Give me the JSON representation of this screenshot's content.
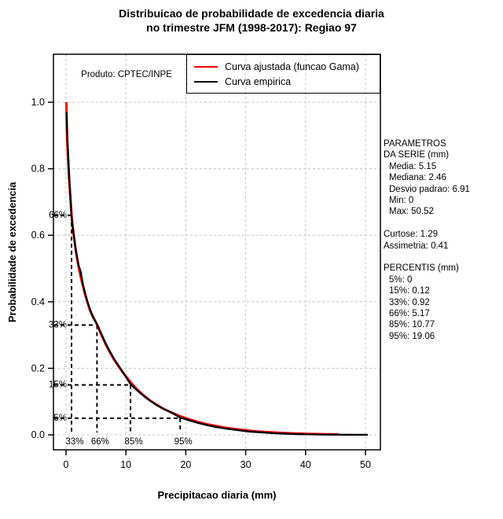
{
  "title": {
    "line1": "Distribuicao de probabilidade de excedencia diaria",
    "line2": "no trimestre JFM (1998-2017): Regiao 97"
  },
  "product_label": "Produto: CPTEC/INPE",
  "legend": {
    "items": [
      {
        "label": "Curva ajustada (funcao Gama)",
        "color": "#ff0000"
      },
      {
        "label": "Curva empirica",
        "color": "#000000"
      }
    ]
  },
  "axes": {
    "x_label": "Precipitacao diaria (mm)",
    "y_label": "Probabilidade de excedencia"
  },
  "side_panel": {
    "parametros_header": [
      "PARAMETROS",
      "DA SERIE (mm)"
    ],
    "parametros_items": [
      "Media: 5.15",
      "Mediana: 2.46",
      "Desvio padrao: 6.91",
      "Min: 0",
      "Max: 50.52"
    ],
    "moments": [
      "Curtose: 1.29",
      "Assimetria: 0.41"
    ],
    "percentis_header": "PERCENTIS (mm)",
    "percentis_items": [
      "5%: 0",
      "15%: 0.12",
      "33%: 0.92",
      "66%: 5.17",
      "85%: 10.77",
      "95%: 19.06"
    ]
  },
  "chart_data": {
    "type": "line",
    "title": "Distribuicao de probabilidade de excedencia diaria no trimestre JFM (1998-2017): Regiao 97",
    "xlabel": "Precipitacao diaria (mm)",
    "ylabel": "Probabilidade de excedencia",
    "xlim": [
      0,
      50
    ],
    "ylim": [
      0,
      1
    ],
    "x_ticks": [
      "0",
      "10",
      "20",
      "30",
      "40",
      "50"
    ],
    "x_tick_values": [
      0,
      10,
      20,
      30,
      40,
      50
    ],
    "y_ticks": [
      "0.0",
      "0.2",
      "0.4",
      "0.6",
      "0.8",
      "1.0"
    ],
    "y_tick_values": [
      0,
      0.2,
      0.4,
      0.6,
      0.8,
      1.0
    ],
    "grid": true,
    "grid_color": "#c4c4c4",
    "legend_position": "top",
    "series": [
      {
        "name": "Curva ajustada (funcao Gama)",
        "color": "#ff0000",
        "points": [
          [
            0.05,
            1.0
          ],
          [
            0.1,
            0.945
          ],
          [
            0.2,
            0.885
          ],
          [
            0.3,
            0.845
          ],
          [
            0.45,
            0.79
          ],
          [
            0.6,
            0.745
          ],
          [
            0.75,
            0.705
          ],
          [
            0.92,
            0.663
          ],
          [
            1.1,
            0.628
          ],
          [
            1.35,
            0.592
          ],
          [
            1.6,
            0.558
          ],
          [
            1.9,
            0.524
          ],
          [
            2.2,
            0.496
          ],
          [
            2.46,
            0.475
          ],
          [
            2.8,
            0.45
          ],
          [
            3.2,
            0.421
          ],
          [
            3.6,
            0.397
          ],
          [
            4.0,
            0.374
          ],
          [
            4.5,
            0.355
          ],
          [
            5.17,
            0.332
          ],
          [
            5.8,
            0.305
          ],
          [
            6.5,
            0.277
          ],
          [
            7.2,
            0.252
          ],
          [
            8.0,
            0.227
          ],
          [
            8.8,
            0.205
          ],
          [
            9.6,
            0.185
          ],
          [
            10.77,
            0.158
          ],
          [
            11.8,
            0.138
          ],
          [
            12.8,
            0.121
          ],
          [
            13.9,
            0.105
          ],
          [
            15.0,
            0.092
          ],
          [
            16.2,
            0.079
          ],
          [
            17.5,
            0.068
          ],
          [
            19.06,
            0.056
          ],
          [
            20.5,
            0.047
          ],
          [
            22.0,
            0.039
          ],
          [
            23.5,
            0.032
          ],
          [
            25.0,
            0.027
          ],
          [
            26.5,
            0.022
          ],
          [
            28.0,
            0.018
          ],
          [
            30.0,
            0.014
          ],
          [
            32.0,
            0.01
          ],
          [
            34.0,
            0.008
          ],
          [
            36.0,
            0.006
          ],
          [
            38.0,
            0.0045
          ],
          [
            40.0,
            0.0033
          ],
          [
            42.0,
            0.0024
          ],
          [
            44.0,
            0.0017
          ],
          [
            45.5,
            0.0014
          ]
        ]
      },
      {
        "name": "Curva empirica",
        "color": "#000000",
        "points": [
          [
            0.1,
            0.97
          ],
          [
            0.15,
            0.935
          ],
          [
            0.25,
            0.885
          ],
          [
            0.35,
            0.845
          ],
          [
            0.5,
            0.79
          ],
          [
            0.65,
            0.74
          ],
          [
            0.8,
            0.7
          ],
          [
            0.92,
            0.655
          ],
          [
            1.1,
            0.625
          ],
          [
            1.3,
            0.6
          ],
          [
            1.55,
            0.565
          ],
          [
            1.8,
            0.54
          ],
          [
            2.1,
            0.51
          ],
          [
            2.46,
            0.49
          ],
          [
            2.8,
            0.455
          ],
          [
            3.2,
            0.425
          ],
          [
            3.6,
            0.4
          ],
          [
            4.05,
            0.375
          ],
          [
            4.55,
            0.352
          ],
          [
            5.17,
            0.333
          ],
          [
            5.8,
            0.308
          ],
          [
            6.5,
            0.28
          ],
          [
            7.2,
            0.255
          ],
          [
            8.0,
            0.229
          ],
          [
            8.8,
            0.207
          ],
          [
            9.7,
            0.183
          ],
          [
            10.77,
            0.152
          ],
          [
            11.8,
            0.135
          ],
          [
            12.9,
            0.118
          ],
          [
            14.0,
            0.103
          ],
          [
            15.2,
            0.089
          ],
          [
            16.4,
            0.077
          ],
          [
            17.7,
            0.066
          ],
          [
            19.06,
            0.052
          ],
          [
            20.5,
            0.044
          ],
          [
            22.0,
            0.036
          ],
          [
            23.6,
            0.029
          ],
          [
            25.2,
            0.023
          ],
          [
            27.0,
            0.018
          ],
          [
            28.8,
            0.014
          ],
          [
            30.6,
            0.01
          ],
          [
            32.5,
            0.0075
          ],
          [
            34.5,
            0.005
          ],
          [
            36.5,
            0.0035
          ],
          [
            38.5,
            0.0022
          ],
          [
            40.5,
            0.0015
          ],
          [
            42.5,
            0.001
          ],
          [
            44.5,
            0.0008
          ],
          [
            46.5,
            0.0005
          ],
          [
            48.5,
            0.0003
          ],
          [
            50.4,
            0.0002
          ]
        ]
      }
    ],
    "percentile_markers": [
      {
        "y_label": "66%",
        "x_label": "33%",
        "exceedance": 0.66,
        "precip_mm": 0.92
      },
      {
        "y_label": "33%",
        "x_label": "66%",
        "exceedance": 0.33,
        "precip_mm": 5.17
      },
      {
        "y_label": "15%",
        "x_label": "85%",
        "exceedance": 0.15,
        "precip_mm": 10.77
      },
      {
        "y_label": "5%",
        "x_label": "95%",
        "exceedance": 0.05,
        "precip_mm": 19.06
      }
    ],
    "annotations": [
      "Produto: CPTEC/INPE"
    ],
    "stats": {
      "media": 5.15,
      "mediana": 2.46,
      "desvio_padrao": 6.91,
      "min": 0,
      "max": 50.52,
      "curtose": 1.29,
      "assimetria": 0.41,
      "percentis": {
        "5%": 0,
        "15%": 0.12,
        "33%": 0.92,
        "66%": 5.17,
        "85%": 10.77,
        "95%": 19.06
      }
    }
  }
}
